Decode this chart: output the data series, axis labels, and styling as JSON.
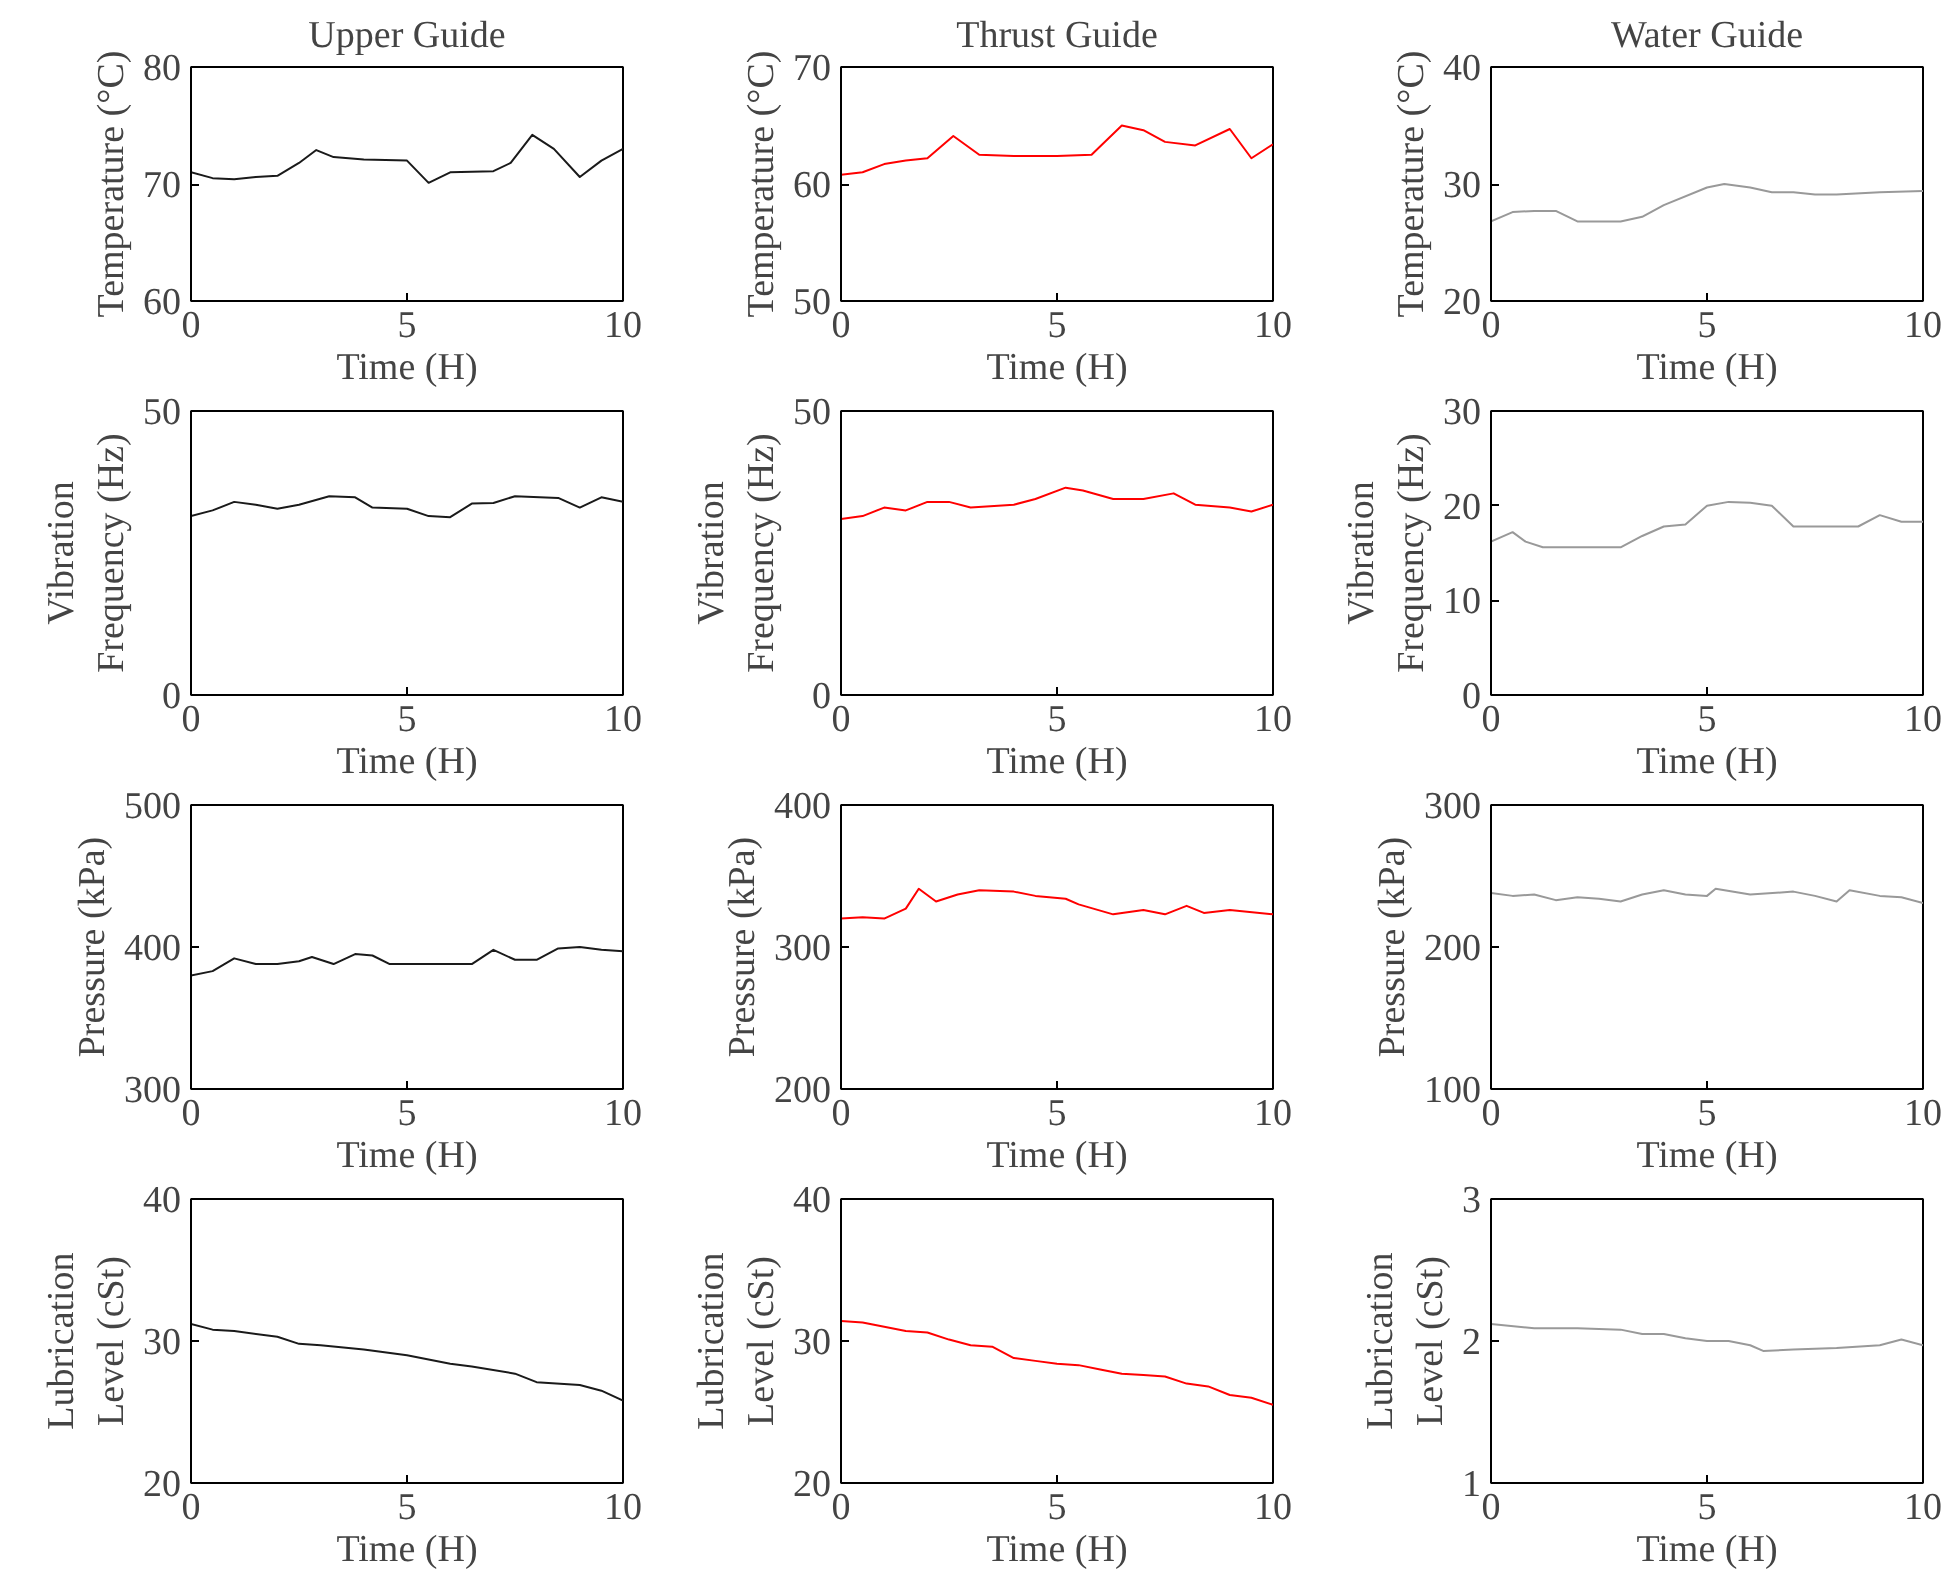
{
  "chart_data": [
    {
      "type": "line",
      "title": "Upper Guide",
      "xlabel": "Time (H)",
      "ylabel": "Temperature (°C)",
      "xlim": [
        0,
        10
      ],
      "ylim": [
        60,
        80
      ],
      "xticks": [
        0,
        5,
        10
      ],
      "yticks": [
        60,
        70,
        80
      ],
      "series": [
        {
          "color": "#1a1a1a",
          "x": [
            0,
            0.5,
            1,
            1.5,
            2,
            2.5,
            2.9,
            3.3,
            4,
            5,
            5.5,
            6,
            7,
            7.4,
            7.9,
            8.4,
            9,
            9.5,
            10
          ],
          "values": [
            71,
            70.5,
            70.4,
            70.6,
            70.7,
            71.8,
            72.9,
            72.3,
            72.1,
            72,
            70.1,
            71,
            71.1,
            71.8,
            74.2,
            73,
            70.6,
            72,
            73
          ]
        }
      ]
    },
    {
      "type": "line",
      "title": "Thrust Guide",
      "xlabel": "Time (H)",
      "ylabel": "Temperature (°C)",
      "xlim": [
        0,
        10
      ],
      "ylim": [
        50,
        70
      ],
      "xticks": [
        0,
        5,
        10
      ],
      "yticks": [
        50,
        60,
        70
      ],
      "series": [
        {
          "color": "#ff0000",
          "x": [
            0,
            0.5,
            1,
            1.5,
            2,
            2.6,
            3.2,
            4,
            5,
            5.8,
            6.5,
            7,
            7.5,
            8.2,
            9,
            9.5,
            10
          ],
          "values": [
            60.8,
            61,
            61.7,
            62,
            62.2,
            64.1,
            62.5,
            62.4,
            62.4,
            62.5,
            65,
            64.6,
            63.6,
            63.3,
            64.7,
            62.2,
            63.4
          ]
        }
      ]
    },
    {
      "type": "line",
      "title": "Water Guide",
      "xlabel": "Time (H)",
      "ylabel": "Temperature (°C)",
      "xlim": [
        0,
        10
      ],
      "ylim": [
        20,
        40
      ],
      "xticks": [
        0,
        5,
        10
      ],
      "yticks": [
        20,
        30,
        40
      ],
      "series": [
        {
          "color": "#999999",
          "x": [
            0,
            0.5,
            1,
            1.5,
            2,
            3,
            3.5,
            4,
            5,
            5.4,
            6,
            6.5,
            7,
            7.5,
            8,
            9,
            10
          ],
          "values": [
            26.8,
            27.6,
            27.7,
            27.7,
            26.8,
            26.8,
            27.2,
            28.2,
            29.7,
            30,
            29.7,
            29.3,
            29.3,
            29.1,
            29.1,
            29.3,
            29.4
          ]
        }
      ]
    },
    {
      "type": "line",
      "xlabel": "Time (H)",
      "ylabel": "Vibration\nFrequency (Hz)",
      "xlim": [
        0,
        10
      ],
      "ylim": [
        0,
        50
      ],
      "xticks": [
        0,
        5,
        10
      ],
      "yticks": [
        0,
        50
      ],
      "series": [
        {
          "color": "#1a1a1a",
          "x": [
            0,
            0.5,
            1,
            1.5,
            2,
            2.5,
            3.2,
            3.8,
            4.2,
            5,
            5.5,
            6,
            6.5,
            7,
            7.5,
            8.5,
            9,
            9.5,
            10
          ],
          "values": [
            31.5,
            32.5,
            34,
            33.5,
            32.8,
            33.5,
            35,
            34.8,
            33,
            32.8,
            31.5,
            31.3,
            33.7,
            33.8,
            35,
            34.7,
            33,
            34.8,
            34
          ]
        }
      ]
    },
    {
      "type": "line",
      "xlabel": "Time (H)",
      "ylabel": "Vibration\nFrequency (Hz)",
      "xlim": [
        0,
        10
      ],
      "ylim": [
        0,
        50
      ],
      "xticks": [
        0,
        5,
        10
      ],
      "yticks": [
        0,
        50
      ],
      "series": [
        {
          "color": "#ff0000",
          "x": [
            0,
            0.5,
            1,
            1.5,
            2,
            2.5,
            3,
            4,
            4.5,
            5.2,
            5.6,
            6.3,
            7,
            7.7,
            8.2,
            9,
            9.5,
            10
          ],
          "values": [
            31,
            31.5,
            33,
            32.5,
            34,
            34,
            33,
            33.5,
            34.5,
            36.5,
            36,
            34.5,
            34.5,
            35.5,
            33.5,
            33,
            32.3,
            33.5
          ]
        }
      ]
    },
    {
      "type": "line",
      "xlabel": "Time (H)",
      "ylabel": "Vibration\nFrequency (Hz)",
      "xlim": [
        0,
        10
      ],
      "ylim": [
        0,
        30
      ],
      "xticks": [
        0,
        5,
        10
      ],
      "yticks": [
        0,
        10,
        20,
        30
      ],
      "series": [
        {
          "color": "#999999",
          "x": [
            0,
            0.5,
            0.8,
            1.2,
            2,
            3,
            3.5,
            4,
            4.5,
            5,
            5.5,
            6,
            6.5,
            7,
            8,
            8.5,
            9,
            9.5,
            10
          ],
          "values": [
            16.2,
            17.2,
            16.2,
            15.6,
            15.6,
            15.6,
            16.8,
            17.8,
            18,
            20,
            20.4,
            20.3,
            20,
            17.8,
            17.8,
            17.8,
            19,
            18.3,
            18.3
          ]
        }
      ]
    },
    {
      "type": "line",
      "xlabel": "Time (H)",
      "ylabel": "Pressure (kPa)",
      "xlim": [
        0,
        10
      ],
      "ylim": [
        300,
        500
      ],
      "xticks": [
        0,
        5,
        10
      ],
      "yticks": [
        300,
        400,
        500
      ],
      "series": [
        {
          "color": "#1a1a1a",
          "x": [
            0,
            0.5,
            1,
            1.5,
            2,
            2.5,
            2.8,
            3.3,
            3.8,
            4.2,
            4.6,
            5,
            6,
            6.5,
            7,
            7.5,
            8,
            8.5,
            9,
            9.5,
            10
          ],
          "values": [
            380,
            383,
            392,
            388,
            388,
            390,
            393,
            388,
            395,
            394,
            388,
            388,
            388,
            388,
            398,
            391,
            391,
            399,
            400,
            398,
            397
          ]
        }
      ]
    },
    {
      "type": "line",
      "xlabel": "Time (H)",
      "ylabel": "Pressure (kPa)",
      "xlim": [
        0,
        10
      ],
      "ylim": [
        200,
        400
      ],
      "xticks": [
        0,
        5,
        10
      ],
      "yticks": [
        200,
        300,
        400
      ],
      "series": [
        {
          "color": "#ff0000",
          "x": [
            0,
            0.5,
            1,
            1.5,
            1.8,
            2.2,
            2.7,
            3.2,
            4,
            4.5,
            5.2,
            5.5,
            6.3,
            7,
            7.5,
            8,
            8.4,
            9,
            10
          ],
          "values": [
            320,
            321,
            320,
            327,
            341,
            332,
            337,
            340,
            339,
            336,
            334,
            330,
            323,
            326,
            323,
            329,
            324,
            326,
            323
          ]
        }
      ]
    },
    {
      "type": "line",
      "xlabel": "Time (H)",
      "ylabel": "Pressure (kPa)",
      "xlim": [
        0,
        10
      ],
      "ylim": [
        100,
        300
      ],
      "xticks": [
        0,
        5,
        10
      ],
      "yticks": [
        100,
        200,
        300
      ],
      "series": [
        {
          "color": "#999999",
          "x": [
            0,
            0.5,
            1,
            1.5,
            2,
            2.5,
            3,
            3.5,
            4,
            4.5,
            5,
            5.2,
            6,
            7,
            7.5,
            8,
            8.3,
            9,
            9.5,
            10
          ],
          "values": [
            238,
            236,
            237,
            233,
            235,
            234,
            232,
            237,
            240,
            237,
            236,
            241,
            237,
            239,
            236,
            232,
            240,
            236,
            235,
            231
          ]
        }
      ]
    },
    {
      "type": "line",
      "xlabel": "Time (H)",
      "ylabel": "Lubrication\nLevel (cSt)",
      "xlim": [
        0,
        10
      ],
      "ylim": [
        20,
        40
      ],
      "xticks": [
        0,
        5,
        10
      ],
      "yticks": [
        20,
        30,
        40
      ],
      "series": [
        {
          "color": "#1a1a1a",
          "x": [
            0,
            0.5,
            1,
            2,
            2.5,
            3,
            4,
            5,
            6,
            6.5,
            7.5,
            8,
            9,
            9.5,
            10
          ],
          "values": [
            31.2,
            30.8,
            30.7,
            30.3,
            29.8,
            29.7,
            29.4,
            29,
            28.4,
            28.2,
            27.7,
            27.1,
            26.9,
            26.5,
            25.8
          ]
        }
      ]
    },
    {
      "type": "line",
      "xlabel": "Time (H)",
      "ylabel": "Lubrication\nLevel (cSt)",
      "xlim": [
        0,
        10
      ],
      "ylim": [
        20,
        40
      ],
      "xticks": [
        0,
        5,
        10
      ],
      "yticks": [
        20,
        30,
        40
      ],
      "series": [
        {
          "color": "#ff0000",
          "x": [
            0,
            0.5,
            1,
            1.5,
            2,
            2.5,
            3,
            3.5,
            4,
            4.5,
            5,
            5.5,
            6,
            6.5,
            7,
            7.5,
            8,
            8.5,
            9,
            9.5,
            10
          ],
          "values": [
            31.4,
            31.3,
            31,
            30.7,
            30.6,
            30.1,
            29.7,
            29.6,
            28.8,
            28.6,
            28.4,
            28.3,
            28,
            27.7,
            27.6,
            27.5,
            27,
            26.8,
            26.2,
            26,
            25.5
          ]
        }
      ]
    },
    {
      "type": "line",
      "xlabel": "Time (H)",
      "ylabel": "Lubrication\nLevel (cSt)",
      "xlim": [
        0,
        10
      ],
      "ylim": [
        1,
        3
      ],
      "xticks": [
        0,
        5,
        10
      ],
      "yticks": [
        1,
        2,
        3
      ],
      "series": [
        {
          "color": "#999999",
          "x": [
            0,
            1,
            2,
            3,
            3.5,
            4,
            4.5,
            5,
            5.5,
            6,
            6.3,
            7,
            8,
            9,
            9.5,
            10
          ],
          "values": [
            2.12,
            2.09,
            2.09,
            2.08,
            2.05,
            2.05,
            2.02,
            2,
            2,
            1.97,
            1.93,
            1.94,
            1.95,
            1.97,
            2.01,
            1.97
          ]
        }
      ]
    }
  ]
}
